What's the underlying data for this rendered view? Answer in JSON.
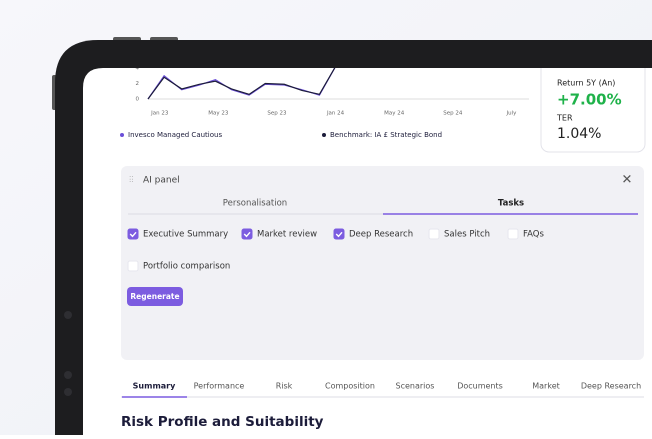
{
  "chart_data": {
    "type": "line",
    "x": [
      -0.8,
      0.3,
      1.5,
      2.7,
      3.8,
      4.9,
      6.1,
      7.2,
      8.5,
      9.7,
      10.9,
      12
    ],
    "series": [
      {
        "name": "Invesco Managed Cautious",
        "color": "#6b4fd8",
        "values": [
          0,
          3.0,
          1.2,
          1.8,
          2.5,
          1.2,
          0.5,
          1.9,
          1.8,
          1.2,
          0.5,
          4.2
        ]
      },
      {
        "name": "Benchmark: IA £ Strategic Bond",
        "color": "#1c1c3a",
        "values": [
          0,
          2.8,
          1.3,
          1.9,
          2.3,
          1.3,
          0.6,
          2.0,
          1.9,
          1.1,
          0.6,
          4.2
        ]
      }
    ],
    "xlim": [
      -0.8,
      25.2
    ],
    "ylim": [
      0,
      4
    ],
    "yticks": [
      0,
      2,
      4
    ],
    "xticks": [
      {
        "value": 0,
        "label": "Jan 23"
      },
      {
        "value": 4,
        "label": "May 23"
      },
      {
        "value": 8,
        "label": "Sep 23"
      },
      {
        "value": 12,
        "label": "Jan 24"
      },
      {
        "value": 16,
        "label": "May 24"
      },
      {
        "value": 20,
        "label": "Sep 24"
      },
      {
        "value": 24,
        "label": "July"
      }
    ]
  },
  "card": {
    "return_label": "Return 5Y (An)",
    "return_value": "+7.00%",
    "ter_label": "TER",
    "ter_value": "1.04%"
  },
  "ai_panel": {
    "title": "AI panel",
    "tabs": [
      "Personalisation",
      "Tasks"
    ],
    "active_tab": 1,
    "tasks": [
      {
        "label": "Executive Summary",
        "checked": true
      },
      {
        "label": "Market review",
        "checked": true
      },
      {
        "label": "Deep Research",
        "checked": true
      },
      {
        "label": "Sales Pitch",
        "checked": false
      },
      {
        "label": "FAQs",
        "checked": false
      },
      {
        "label": "Portfolio comparison",
        "checked": false
      }
    ],
    "button": "Regenerate"
  },
  "tabs": {
    "items": [
      "Summary",
      "Performance",
      "Risk",
      "Composition",
      "Scenarios",
      "Documents",
      "Market",
      "Deep Research"
    ],
    "active": 0
  },
  "heading": "Risk Profile and Suitability"
}
